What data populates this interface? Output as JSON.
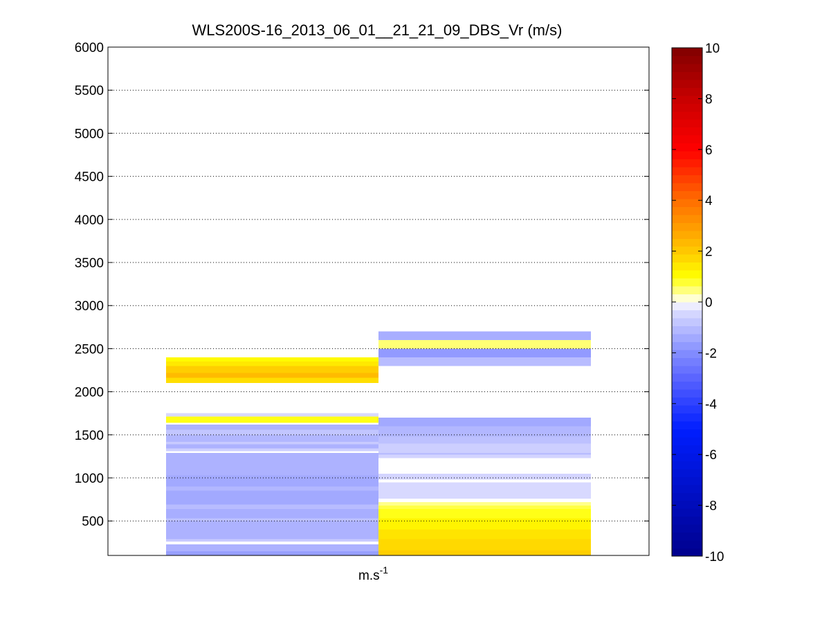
{
  "chart_data": {
    "type": "heatmap",
    "title": "WLS200S-16_2013_06_01__21_21_09_DBS_Vr (m/s)",
    "xlabel": "m.s",
    "xlabel_superscript": "-1",
    "ylabel": "",
    "ylim": [
      100,
      6000
    ],
    "yticks": [
      500,
      1000,
      1500,
      2000,
      2500,
      3000,
      3500,
      4000,
      4500,
      5000,
      5500,
      6000
    ],
    "ygrid": true,
    "colorbar": {
      "range": [
        -10,
        10
      ],
      "ticks": [
        -10,
        -8,
        -6,
        -4,
        -2,
        0,
        2,
        4,
        6,
        8,
        10
      ],
      "placement": "right"
    },
    "columns": [
      {
        "cells": [
          {
            "y0": 100,
            "y1": 150,
            "v": -1.6
          },
          {
            "y0": 150,
            "y1": 230,
            "v": -1.2
          },
          {
            "y0": 230,
            "y1": 260,
            "v": 0.0
          },
          {
            "y0": 260,
            "y1": 290,
            "v": -0.7
          },
          {
            "y0": 290,
            "y1": 500,
            "v": -1.2
          },
          {
            "y0": 500,
            "y1": 530,
            "v": -0.9
          },
          {
            "y0": 530,
            "y1": 640,
            "v": -1.3
          },
          {
            "y0": 640,
            "y1": 690,
            "v": -1.0
          },
          {
            "y0": 690,
            "y1": 850,
            "v": -1.4
          },
          {
            "y0": 850,
            "y1": 900,
            "v": -1.1
          },
          {
            "y0": 900,
            "y1": 1030,
            "v": -1.4
          },
          {
            "y0": 1030,
            "y1": 1290,
            "v": -1.2
          },
          {
            "y0": 1290,
            "y1": 1310,
            "v": 0.0
          },
          {
            "y0": 1310,
            "y1": 1340,
            "v": -0.6
          },
          {
            "y0": 1340,
            "y1": 1390,
            "v": -1.2
          },
          {
            "y0": 1390,
            "y1": 1420,
            "v": -0.7
          },
          {
            "y0": 1420,
            "y1": 1500,
            "v": -1.1
          },
          {
            "y0": 1500,
            "y1": 1560,
            "v": -0.8
          },
          {
            "y0": 1560,
            "y1": 1620,
            "v": -1.2
          },
          {
            "y0": 1620,
            "y1": 1640,
            "v": 0.0
          },
          {
            "y0": 1640,
            "y1": 1710,
            "v": 0.9
          },
          {
            "y0": 1710,
            "y1": 1750,
            "v": -0.4
          },
          {
            "y0": 2100,
            "y1": 2160,
            "v": 1.6
          },
          {
            "y0": 2160,
            "y1": 2220,
            "v": 2.3
          },
          {
            "y0": 2220,
            "y1": 2300,
            "v": 1.9
          },
          {
            "y0": 2300,
            "y1": 2350,
            "v": 1.4
          },
          {
            "y0": 2350,
            "y1": 2400,
            "v": 1.1
          }
        ]
      },
      {
        "cells": [
          {
            "y0": 100,
            "y1": 160,
            "v": 1.9
          },
          {
            "y0": 160,
            "y1": 290,
            "v": 1.7
          },
          {
            "y0": 290,
            "y1": 400,
            "v": 1.5
          },
          {
            "y0": 400,
            "y1": 530,
            "v": 1.2
          },
          {
            "y0": 530,
            "y1": 640,
            "v": 0.9
          },
          {
            "y0": 640,
            "y1": 680,
            "v": 0.7
          },
          {
            "y0": 680,
            "y1": 720,
            "v": 0.4
          },
          {
            "y0": 720,
            "y1": 760,
            "v": 0.0
          },
          {
            "y0": 760,
            "y1": 950,
            "v": -0.4
          },
          {
            "y0": 950,
            "y1": 980,
            "v": 0.0
          },
          {
            "y0": 980,
            "y1": 1050,
            "v": -0.5
          },
          {
            "y0": 1050,
            "y1": 1230,
            "v": 0.0
          },
          {
            "y0": 1230,
            "y1": 1270,
            "v": -0.5
          },
          {
            "y0": 1270,
            "y1": 1290,
            "v": -1.0
          },
          {
            "y0": 1290,
            "y1": 1400,
            "v": -0.6
          },
          {
            "y0": 1400,
            "y1": 1480,
            "v": -0.9
          },
          {
            "y0": 1480,
            "y1": 1600,
            "v": -1.1
          },
          {
            "y0": 1600,
            "y1": 1700,
            "v": -1.4
          },
          {
            "y0": 2300,
            "y1": 2400,
            "v": -1.0
          },
          {
            "y0": 2400,
            "y1": 2500,
            "v": -1.7
          },
          {
            "y0": 2500,
            "y1": 2600,
            "v": 0.5
          },
          {
            "y0": 2600,
            "y1": 2700,
            "v": -1.3
          }
        ]
      }
    ]
  }
}
